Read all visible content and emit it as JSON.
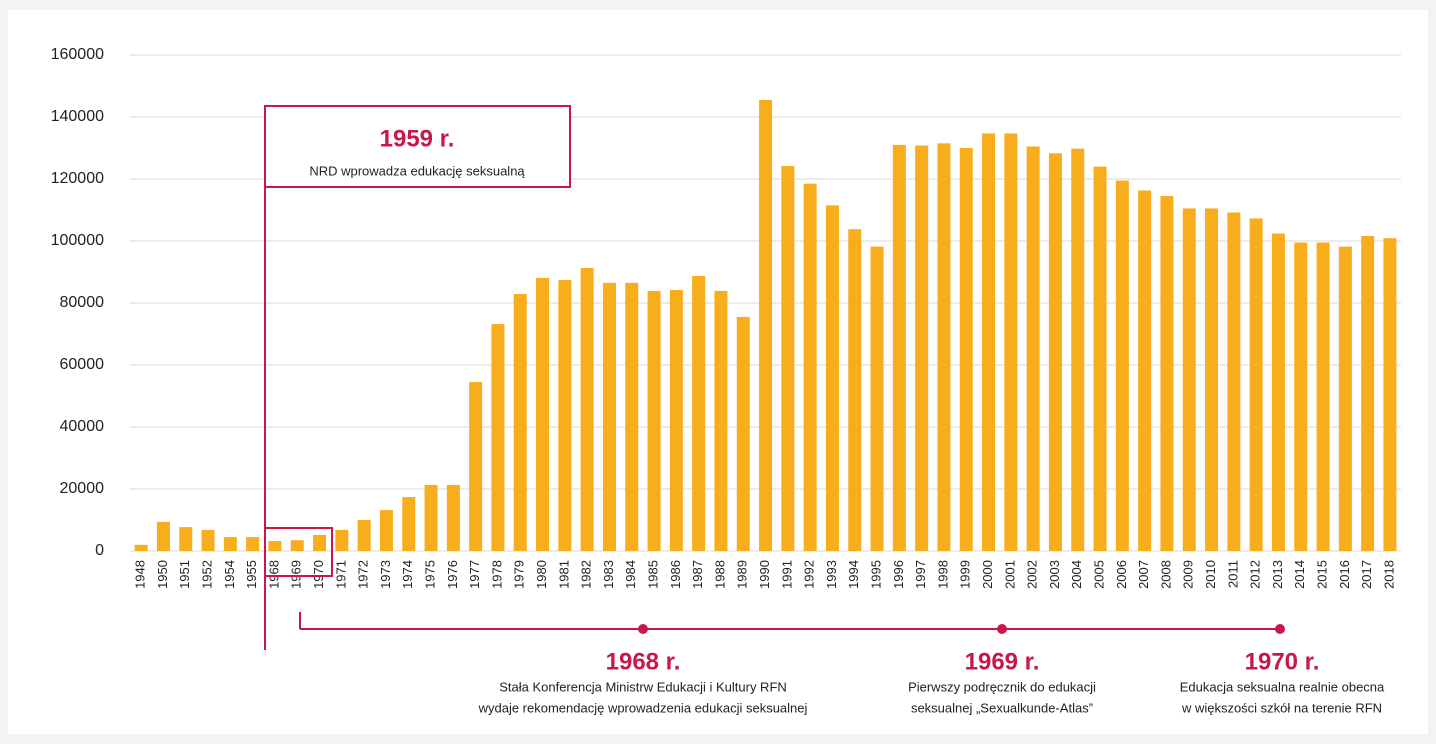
{
  "chart_data": {
    "type": "bar",
    "categories": [
      "1948",
      "1950",
      "1951",
      "1952",
      "1954",
      "1955",
      "1968",
      "1969",
      "1970",
      "1971",
      "1972",
      "1973",
      "1974",
      "1975",
      "1976",
      "1977",
      "1978",
      "1979",
      "1980",
      "1981",
      "1982",
      "1983",
      "1984",
      "1985",
      "1986",
      "1987",
      "1988",
      "1989",
      "1990",
      "1991",
      "1992",
      "1993",
      "1994",
      "1995",
      "1996",
      "1997",
      "1998",
      "1999",
      "2000",
      "2001",
      "2002",
      "2003",
      "2004",
      "2005",
      "2006",
      "2007",
      "2008",
      "2009",
      "2010",
      "2011",
      "2012",
      "2013",
      "2014",
      "2015",
      "2016",
      "2017",
      "2018"
    ],
    "values": [
      2000,
      9400,
      7700,
      6800,
      4500,
      4500,
      3200,
      3500,
      5200,
      6800,
      10000,
      13200,
      17400,
      21300,
      21300,
      54500,
      73200,
      82900,
      88100,
      87400,
      91300,
      86500,
      86500,
      83900,
      84200,
      88700,
      83900,
      75500,
      145500,
      124200,
      118500,
      111500,
      103800,
      98200,
      131000,
      130800,
      131500,
      130000,
      134700,
      134700,
      130500,
      128300,
      129800,
      124000,
      119500,
      116300,
      114500,
      110500,
      110500,
      109200,
      107300,
      102400,
      99500,
      99500,
      98200,
      101600,
      100900
    ],
    "color": "#f8ad1d",
    "ylim": [
      0,
      160000
    ],
    "yticks": [
      0,
      20000,
      40000,
      60000,
      80000,
      100000,
      120000,
      140000,
      160000
    ],
    "grid": true,
    "annotations": [
      {
        "title": "1959 r.",
        "lines": [
          "NRD wprowadza edukację seksualną"
        ]
      },
      {
        "title": "1968 r.",
        "lines": [
          "Stała Konferencja Ministrw Edukacji i Kultury RFN",
          "wydaje rekomendację wprowadzenia edukacji seksualnej"
        ]
      },
      {
        "title": "1969 r.",
        "lines": [
          "Pierwszy podręcznik do edukacji",
          "seksualnej „Sexualkunde-Atlas”"
        ]
      },
      {
        "title": "1970 r.",
        "lines": [
          "Edukacja seksualna realnie obecna",
          "w większości szkół na terenie RFN"
        ]
      }
    ]
  }
}
